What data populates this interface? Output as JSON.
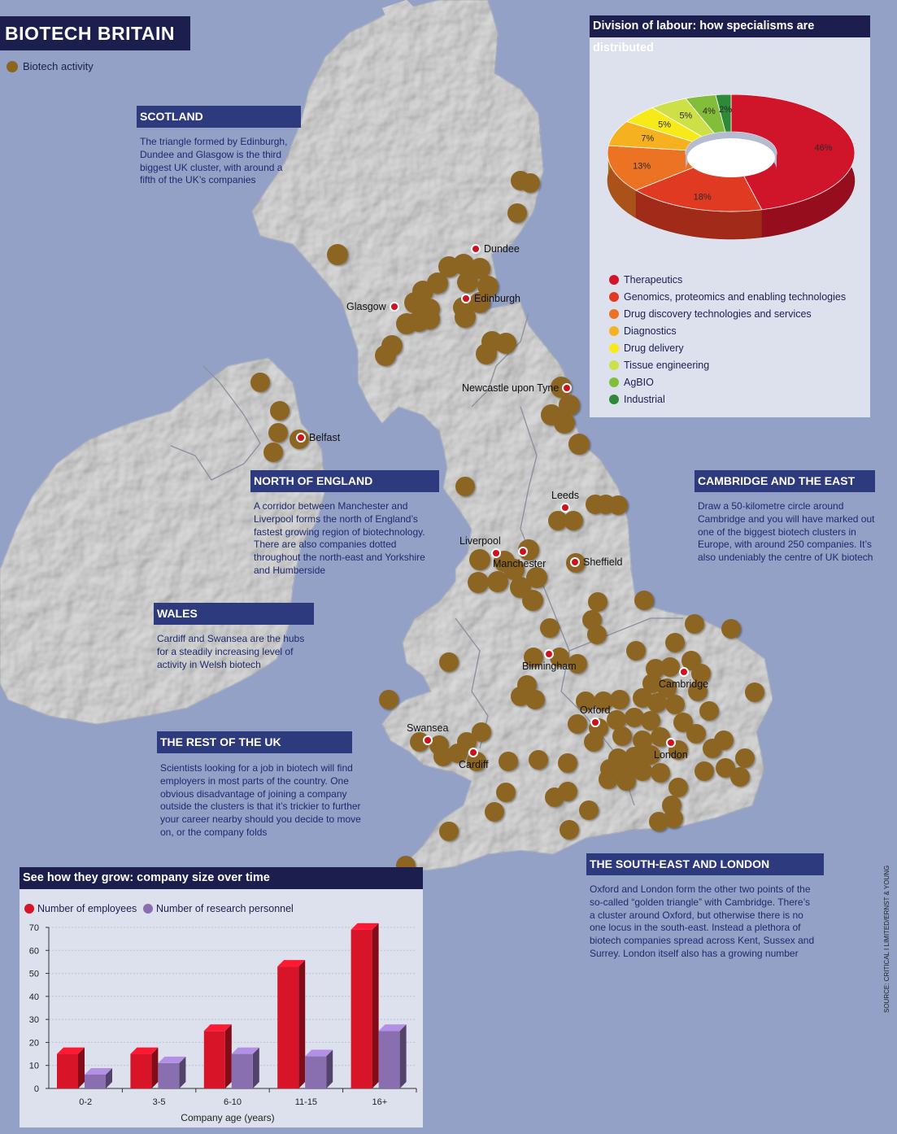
{
  "title": "BIOTECH BRITAIN",
  "legend": {
    "activity_label": "Biotech activity",
    "activity_color": "#8c6520"
  },
  "colors": {
    "sea": "#93a1c6",
    "land": "#dcdcdc",
    "cluster": "#8c6520",
    "city": "#d0101c",
    "header": "#1c1f4d",
    "section_header": "#2e3a7e"
  },
  "sections": {
    "scotland": {
      "title": "SCOTLAND",
      "text": [
        "The triangle formed by Edinburgh,",
        "Dundee and Glasgow is the third",
        "biggest UK cluster, with around a",
        "fifth of the UK’s companies"
      ]
    },
    "north": {
      "title": "NORTH OF ENGLAND",
      "text": [
        "A corridor between Manchester and",
        "Liverpool forms the north of England’s",
        "fastest growing region of biotechnology.",
        "There are also companies dotted",
        "throughout the north-east and Yorkshire",
        "and Humberside"
      ]
    },
    "cambridge": {
      "title": "CAMBRIDGE AND THE EAST",
      "text": [
        "Draw a 50-kilometre circle around",
        "Cambridge and you will have marked out",
        "one of the biggest biotech clusters in",
        "Europe, with around 250 companies. It’s",
        "also undeniably the centre of UK biotech"
      ]
    },
    "wales": {
      "title": "WALES",
      "text": [
        "Cardiff and Swansea are the hubs",
        "for a steadily increasing level of",
        "activity in Welsh biotech"
      ]
    },
    "rest": {
      "title": "THE REST OF THE UK",
      "text": [
        "Scientists looking for a job in biotech will find",
        "employers in most parts of the country. One",
        "obvious disadvantage of joining a company",
        "outside the clusters is that it’s trickier to further",
        "your career nearby should you decide to move",
        "on, or the company folds"
      ]
    },
    "southeast": {
      "title": "THE SOUTH-EAST AND LONDON",
      "text": [
        "Oxford and London form the other two points of the",
        "so-called “golden triangle” with Cambridge. There’s",
        "a cluster around Oxford, but otherwise there is no",
        "one locus in the south-east. Instead a plethora of",
        "biotech companies spread across Kent, Sussex and",
        "Surrey. London itself also has a growing number"
      ]
    }
  },
  "cities": [
    "Dundee",
    "Edinburgh",
    "Glasgow",
    "Newcastle upon Tyne",
    "Belfast",
    "Leeds",
    "Liverpool",
    "Manchester",
    "Sheffield",
    "Birmingham",
    "Cambridge",
    "Oxford",
    "Swansea",
    "Cardiff",
    "London"
  ],
  "pie_panel": {
    "title": "Division of labour: how specialisms are distributed",
    "chart_data": {
      "type": "pie",
      "title": "Division of labour: how specialisms are distributed",
      "slices": [
        {
          "label": "Therapeutics",
          "value": 46,
          "value_label": "46%",
          "color": "#d0142a"
        },
        {
          "label": "Genomics, proteomics and enabling technologies",
          "value": 18,
          "value_label": "18%",
          "color": "#e03a22"
        },
        {
          "label": "Drug discovery technologies and services",
          "value": 13,
          "value_label": "13%",
          "color": "#ec7224"
        },
        {
          "label": "Diagnostics",
          "value": 7,
          "value_label": "7%",
          "color": "#f6b120"
        },
        {
          "label": "Drug delivery",
          "value": 5,
          "value_label": "5%",
          "color": "#f8ea18"
        },
        {
          "label": "Tissue engineering",
          "value": 5,
          "value_label": "5%",
          "color": "#cde048"
        },
        {
          "label": "AgBIO",
          "value": 4,
          "value_label": "4%",
          "color": "#82be3a"
        },
        {
          "label": "Industrial",
          "value": 2,
          "value_label": "2%",
          "color": "#2e8a38"
        }
      ]
    }
  },
  "bar_panel": {
    "title": "See how they grow: company size over time",
    "chart_data": {
      "type": "bar",
      "categories": [
        "0-2",
        "3-5",
        "6-10",
        "11-15",
        "16+"
      ],
      "series": [
        {
          "name": "Number of employees",
          "values": [
            15,
            15,
            25,
            53,
            69
          ],
          "color": "#d81428"
        },
        {
          "name": "Number of research personnel",
          "values": [
            6,
            11,
            15,
            14,
            25
          ],
          "color": "#8a6fb0"
        }
      ],
      "xlabel": "Company age (years)",
      "ylabel": "",
      "ylim": [
        0,
        70
      ],
      "yticks": [
        "0",
        "10",
        "20",
        "30",
        "40",
        "50",
        "60",
        "70"
      ]
    }
  },
  "source": "SOURCE: CRITICAL I LIMITED/ERNST & YOUNG"
}
